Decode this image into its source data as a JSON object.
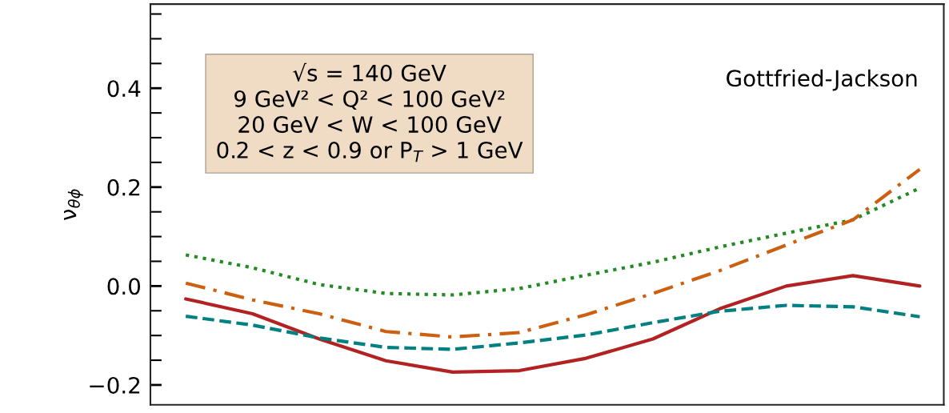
{
  "chart_data": {
    "type": "line",
    "ylabel": "ν$_{θϕ}$",
    "categories": [
      null,
      null,
      null,
      null,
      null,
      null,
      null,
      null,
      null,
      null,
      null,
      null
    ],
    "series": [
      {
        "color": "#228b22",
        "line_style": "dotted",
        "values": [
          0.063,
          0.037,
          0.003,
          -0.015,
          -0.018,
          -0.005,
          0.022,
          0.048,
          0.079,
          0.107,
          0.134,
          0.198
        ]
      },
      {
        "color": "#cc6010",
        "line_style": "dashdot",
        "values": [
          0.006,
          -0.028,
          -0.056,
          -0.092,
          -0.103,
          -0.094,
          -0.058,
          -0.015,
          0.031,
          0.083,
          0.134,
          0.236
        ]
      },
      {
        "color": "#b22222",
        "line_style": "solid",
        "values": [
          -0.026,
          -0.056,
          -0.107,
          -0.151,
          -0.174,
          -0.171,
          -0.146,
          -0.107,
          -0.046,
          0.0,
          0.021,
          0.0
        ]
      },
      {
        "color": "#008080",
        "line_style": "dashed",
        "values": [
          -0.061,
          -0.079,
          -0.105,
          -0.124,
          -0.128,
          -0.115,
          -0.099,
          -0.074,
          -0.051,
          -0.039,
          -0.042,
          -0.062
        ]
      }
    ],
    "ylim": [
      -0.24,
      0.57
    ],
    "yticks": [
      {
        "value": -0.2,
        "label": "−0.2"
      },
      {
        "value": -0.15,
        "label": null
      },
      {
        "value": -0.1,
        "label": null
      },
      {
        "value": -0.05,
        "label": null
      },
      {
        "value": 0.0,
        "label": "0.0"
      },
      {
        "value": 0.05,
        "label": null
      },
      {
        "value": 0.1,
        "label": null
      },
      {
        "value": 0.15,
        "label": null
      },
      {
        "value": 0.2,
        "label": "0.2"
      },
      {
        "value": 0.25,
        "label": null
      },
      {
        "value": 0.3,
        "label": null
      },
      {
        "value": 0.35,
        "label": null
      },
      {
        "value": 0.4,
        "label": "0.4"
      },
      {
        "value": 0.45,
        "label": null
      },
      {
        "value": 0.5,
        "label": null
      },
      {
        "value": 0.55,
        "label": null
      }
    ],
    "tick_labels": "y",
    "grid": false,
    "annotations": [
      "√s = 140 GeV\n9 GeV² < Q² < 100 GeV²\n20 GeV < W < 100 GeV\n0.2 < z < 0.9 or P$_{T}$ > 1 GeV",
      "Gottfried-Jackson"
    ]
  }
}
